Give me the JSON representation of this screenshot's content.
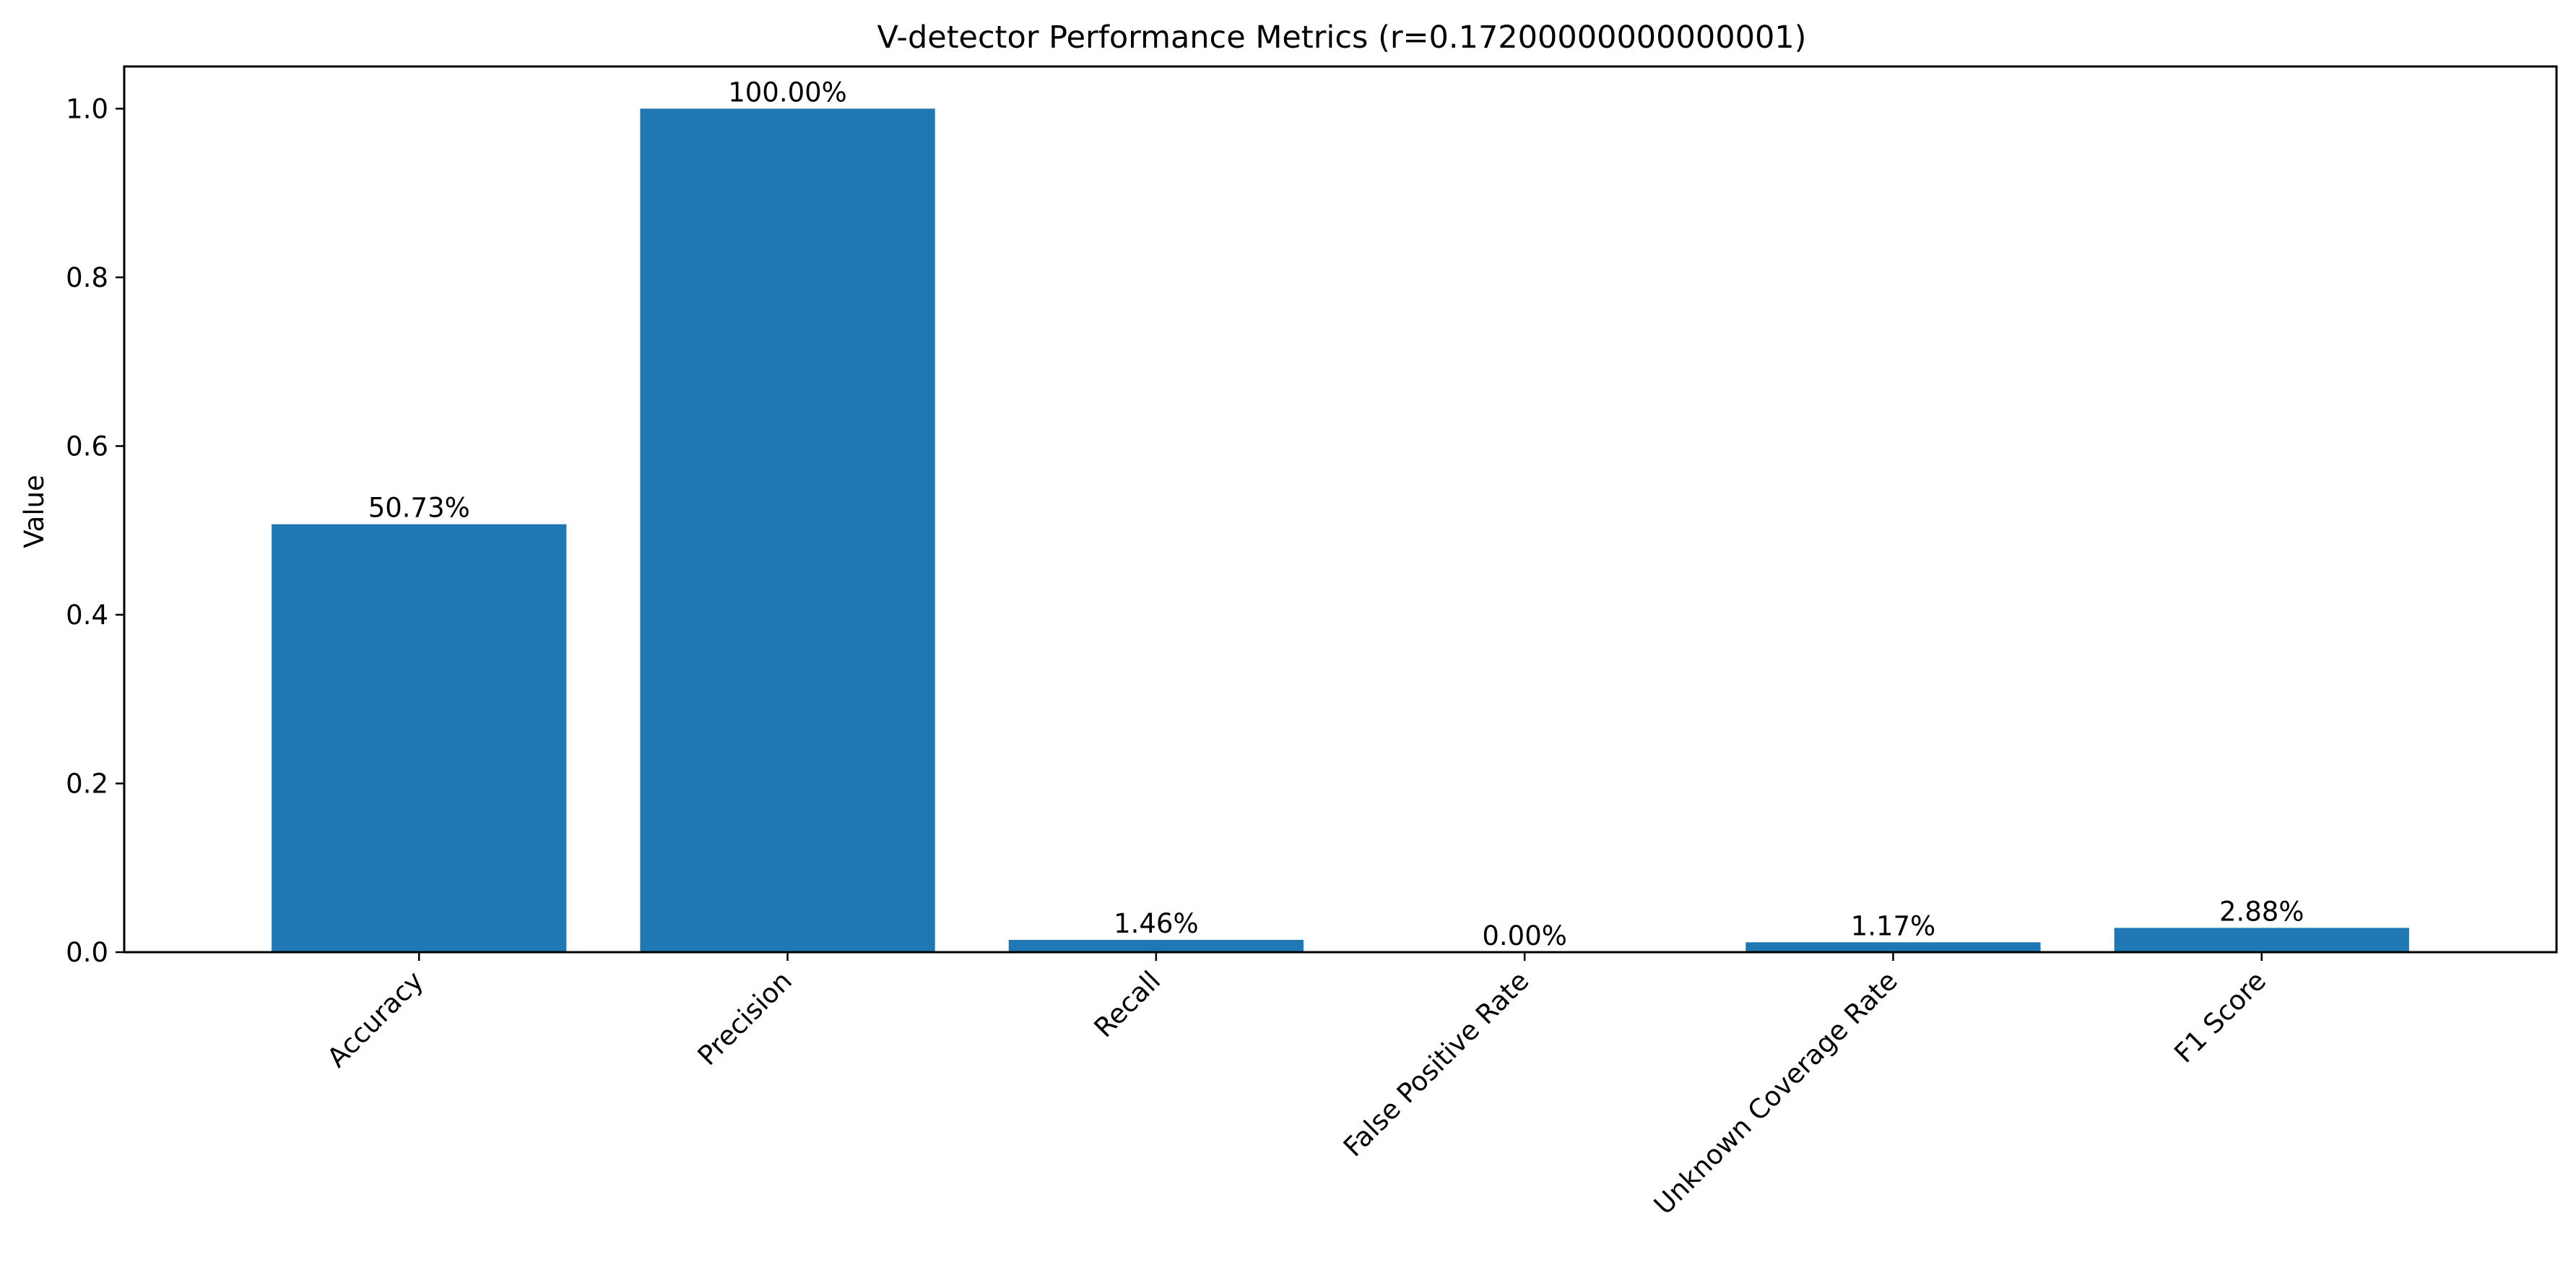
{
  "chart_data": {
    "type": "bar",
    "title": "V-detector Performance Metrics (r=0.17200000000000001)",
    "xlabel": "",
    "ylabel": "Value",
    "categories": [
      "Accuracy",
      "Precision",
      "Recall",
      "False Positive Rate",
      "Unknown Coverage Rate",
      "F1 Score"
    ],
    "values": [
      0.5073,
      1.0,
      0.0146,
      0.0,
      0.0117,
      0.0288
    ],
    "value_labels": [
      "50.73%",
      "100.00%",
      "1.46%",
      "0.00%",
      "1.17%",
      "2.88%"
    ],
    "ylim": [
      0,
      1.05
    ],
    "yticks": [
      0.0,
      0.2,
      0.4,
      0.6,
      0.8,
      1.0
    ],
    "ytick_labels": [
      "0.0",
      "0.2",
      "0.4",
      "0.6",
      "0.8",
      "1.0"
    ],
    "grid": false,
    "legend": "none",
    "bar_color": "#1f77b4"
  }
}
